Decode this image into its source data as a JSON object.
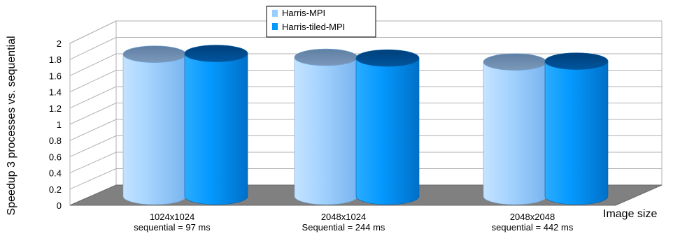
{
  "chart_data": {
    "type": "bar",
    "style": "3d-cylinder",
    "categories": [
      [
        "1024x1024",
        "sequential = 97 ms"
      ],
      [
        "2048x1024",
        "Sequential = 244 ms"
      ],
      [
        "2048x2048",
        "sequential = 442 ms"
      ]
    ],
    "series": [
      {
        "name": "Harris-MPI",
        "values": [
          1.84,
          1.8,
          1.74
        ],
        "color": "#99ccff"
      },
      {
        "name": "Harris-tiled-MPI",
        "values": [
          1.85,
          1.79,
          1.75
        ],
        "color": "#0099ff"
      }
    ],
    "ylabel": "Speedup 3 processes vs. sequential",
    "xlabel": "Image size",
    "ylim": [
      0,
      2
    ],
    "yticks": [
      "0",
      "0.2",
      "0.4",
      "0.6",
      "0.8",
      "1",
      "1.2",
      "1.4",
      "1.6",
      "1.8",
      "2"
    ],
    "grid": true,
    "legend": "top-center"
  }
}
